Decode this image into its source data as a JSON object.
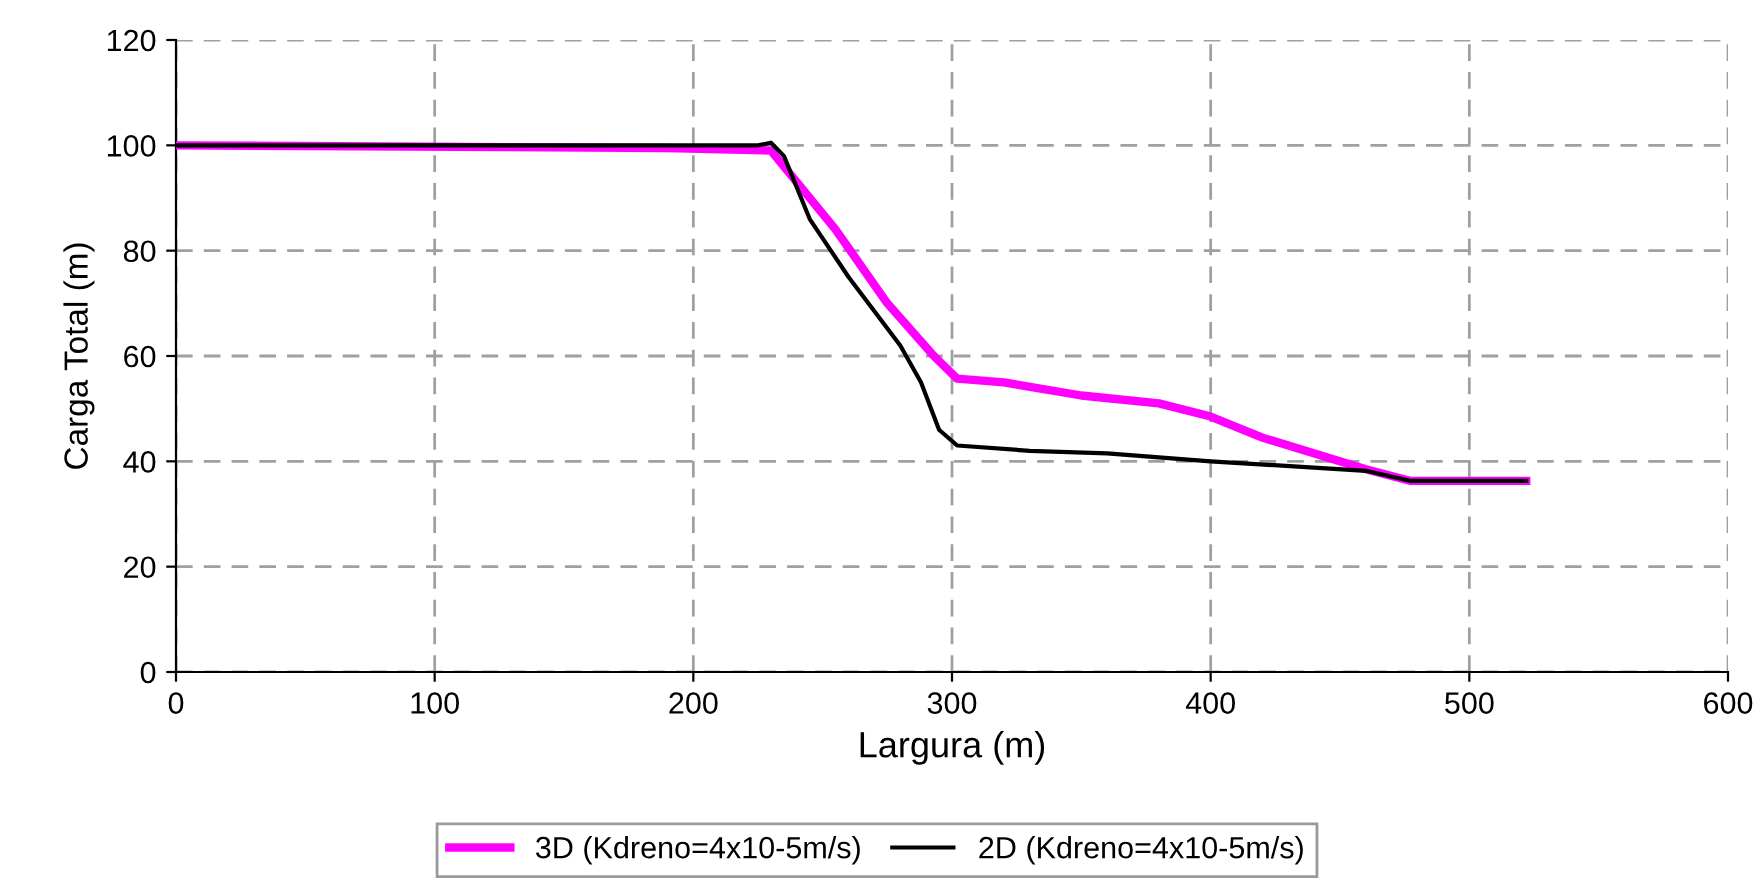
{
  "chart_data": {
    "type": "line",
    "xlabel": "Largura (m)",
    "ylabel": "Carga Total (m)",
    "xlim": [
      0,
      600
    ],
    "xticks": [
      0,
      100,
      200,
      300,
      400,
      500,
      600
    ],
    "ylim": [
      0,
      120
    ],
    "yticks": [
      0,
      20,
      40,
      60,
      80,
      100,
      120
    ],
    "grid": true,
    "legend": "bottom",
    "marker": "none",
    "series": [
      {
        "name": "3D (Kdreno=4x10-5m/s)",
        "color": "#ff00ff",
        "x": [
          0,
          190,
          230,
          240,
          255,
          275,
          293,
          302,
          320,
          350,
          380,
          400,
          420,
          460,
          477,
          522
        ],
        "values": [
          100,
          99.5,
          99,
          93,
          84,
          70,
          60,
          55.7,
          55,
          52.5,
          51,
          48.5,
          44.5,
          38.5,
          36.3,
          36.3
        ]
      },
      {
        "name": "2D (Kdreno=4x10-5m/s)",
        "color": "#000000",
        "x": [
          0,
          225,
          230,
          235,
          245,
          260,
          280,
          288,
          295,
          302,
          330,
          360,
          400,
          460,
          477,
          522
        ],
        "values": [
          100,
          100,
          100.5,
          98,
          86,
          75,
          62,
          55,
          46,
          43,
          42,
          41.5,
          40,
          38.2,
          36.3,
          36.3
        ]
      }
    ]
  }
}
